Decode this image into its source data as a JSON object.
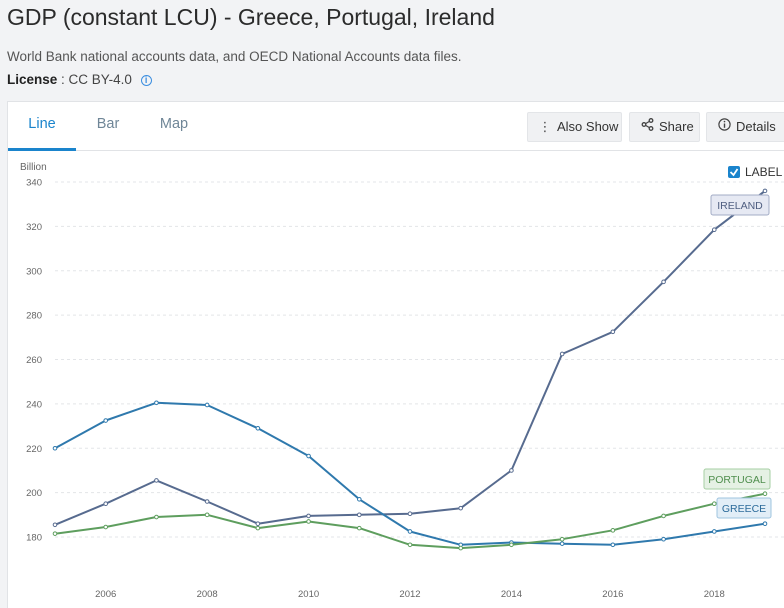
{
  "header": {
    "title": "GDP (constant LCU) - Greece, Portugal, Ireland",
    "source": "World Bank national accounts data, and OECD National Accounts data files.",
    "license_label": "License",
    "license_value": ": CC BY-4.0"
  },
  "tabs": [
    {
      "label": "Line",
      "active": true
    },
    {
      "label": "Bar",
      "active": false
    },
    {
      "label": "Map",
      "active": false
    }
  ],
  "actions": {
    "also_show": "Also Show",
    "share": "Share",
    "details": "Details"
  },
  "label_toggle": {
    "text": "LABEL",
    "checked": true
  },
  "colors": {
    "ireland": "#576b8f",
    "portugal": "#5e9e5e",
    "greece": "#2f79ad",
    "accent": "#1a84cc"
  },
  "chart_data": {
    "type": "line",
    "title": "GDP (constant LCU) - Greece, Portugal, Ireland",
    "ylabel": "Billion",
    "ylim": [
      170,
      340
    ],
    "xlim": [
      2005,
      2019
    ],
    "y_ticks": [
      180,
      200,
      220,
      240,
      260,
      280,
      300,
      320,
      340
    ],
    "x_ticks": [
      2006,
      2008,
      2010,
      2012,
      2014,
      2016,
      2018
    ],
    "x": [
      2005,
      2006,
      2007,
      2008,
      2009,
      2010,
      2011,
      2012,
      2013,
      2014,
      2015,
      2016,
      2017,
      2018,
      2019
    ],
    "series": [
      {
        "name": "IRELAND",
        "key": "ireland",
        "values": [
          185.5,
          195,
          205.5,
          196,
          186,
          189.5,
          190,
          190.5,
          193,
          210,
          262.5,
          272.5,
          295,
          318.5,
          336
        ]
      },
      {
        "name": "GREECE",
        "key": "greece",
        "values": [
          220,
          232.5,
          240.5,
          239.5,
          229,
          216.5,
          197,
          182.5,
          176.5,
          177.5,
          177,
          176.5,
          179,
          182.5,
          186
        ]
      },
      {
        "name": "PORTUGAL",
        "key": "portugal",
        "values": [
          181.5,
          184.5,
          189,
          190,
          184,
          187,
          184,
          176.5,
          175,
          176.5,
          179,
          183,
          189.5,
          195,
          199.5
        ]
      }
    ]
  }
}
